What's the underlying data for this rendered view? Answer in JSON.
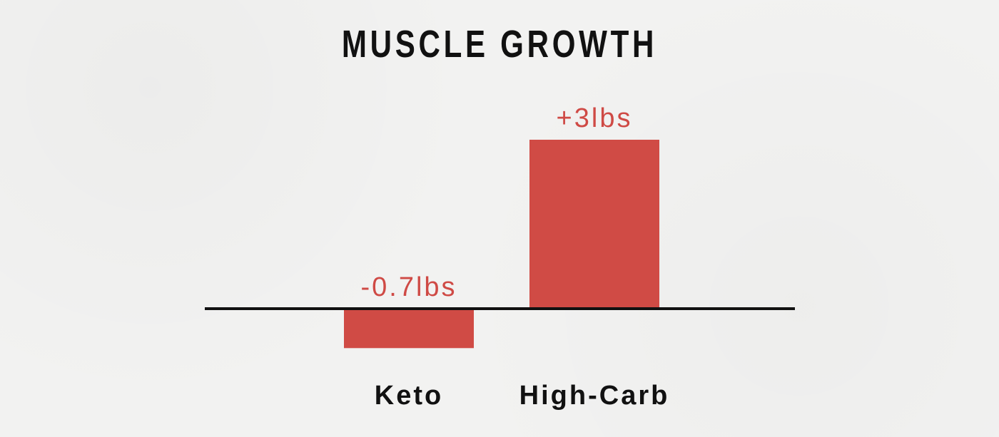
{
  "chart_data": {
    "type": "bar",
    "title": "MUSCLE GROWTH",
    "categories": [
      "Keto",
      "High-Carb"
    ],
    "values": [
      -0.7,
      3
    ],
    "data_labels": [
      "-0.7lbs",
      "+3lbs"
    ],
    "unit": "lbs",
    "ylim": [
      -0.75,
      3.1
    ],
    "grid": false,
    "legend": "none",
    "colors": {
      "bar": "#d04b45",
      "label": "#cf4a45",
      "axis": "#111111",
      "text": "#111111",
      "background": "#f2f2f1"
    }
  }
}
